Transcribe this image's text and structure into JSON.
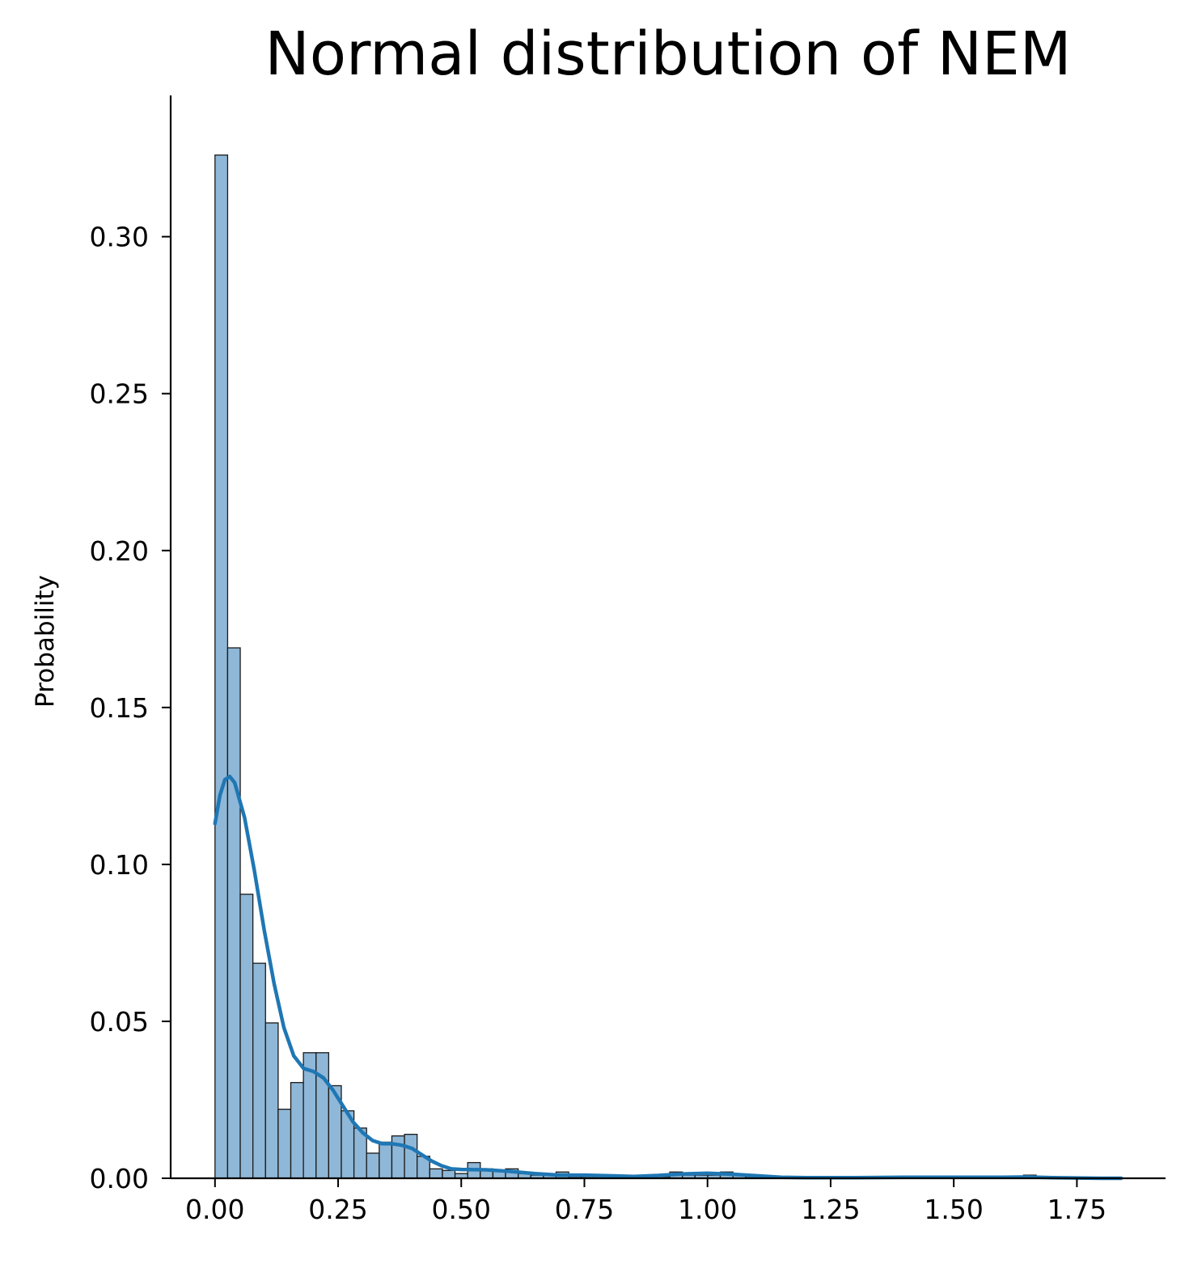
{
  "chart_data": {
    "type": "histogram",
    "title": "Normal distribution of NEM",
    "xlabel": "",
    "ylabel": "Probability",
    "xlim": [
      -0.09,
      1.93
    ],
    "ylim": [
      0,
      0.345
    ],
    "x_ticks": [
      "0.00",
      "0.25",
      "0.50",
      "0.75",
      "1.00",
      "1.25",
      "1.50",
      "1.75"
    ],
    "y_ticks": [
      "0.00",
      "0.05",
      "0.10",
      "0.15",
      "0.20",
      "0.25",
      "0.30"
    ],
    "grid": false,
    "colors": {
      "bar_fill": "#8fb7d7",
      "bar_edge": "#1a1a1a",
      "kde_line": "#1f77b4",
      "axis": "#000000"
    },
    "bins": {
      "start": 0.0,
      "width": 0.02565,
      "probabilities": [
        0.326,
        0.169,
        0.0905,
        0.0685,
        0.0495,
        0.022,
        0.0305,
        0.04,
        0.04,
        0.0295,
        0.0215,
        0.016,
        0.008,
        0.0115,
        0.0135,
        0.014,
        0.007,
        0.003,
        0.0025,
        0.0015,
        0.005,
        0.003,
        0.0025,
        0.003,
        0.0015,
        0.001,
        0.001,
        0.002,
        0.0005,
        0.0005,
        0.0005,
        0.0005,
        0.0005,
        0.0005,
        0.0005,
        0.0005,
        0.002,
        0.001,
        0.001,
        0.001,
        0.002,
        0.001,
        0.0005,
        0.0,
        0.0,
        0.0,
        0.0,
        0.0,
        0.0,
        0.0,
        0.0,
        0.0,
        0.0,
        0.0,
        0.0005,
        0.0005,
        0.0005,
        0.0005,
        0.0005,
        0.0,
        0.0,
        0.0,
        0.0,
        0.0,
        0.001,
        0.0,
        0.0,
        0.0,
        0.0,
        0.0,
        0.0,
        0.0,
        0.0
      ]
    },
    "kde": {
      "x": [
        0.0,
        0.01,
        0.02,
        0.03,
        0.04,
        0.06,
        0.08,
        0.1,
        0.12,
        0.14,
        0.16,
        0.18,
        0.2,
        0.22,
        0.24,
        0.26,
        0.28,
        0.3,
        0.32,
        0.34,
        0.36,
        0.38,
        0.4,
        0.42,
        0.44,
        0.46,
        0.48,
        0.5,
        0.55,
        0.6,
        0.65,
        0.7,
        0.75,
        0.8,
        0.85,
        0.9,
        0.95,
        1.0,
        1.05,
        1.1,
        1.15,
        1.2,
        1.3,
        1.4,
        1.5,
        1.6,
        1.65,
        1.7,
        1.75,
        1.8,
        1.84
      ],
      "y": [
        0.113,
        0.122,
        0.127,
        0.128,
        0.126,
        0.115,
        0.098,
        0.079,
        0.062,
        0.048,
        0.039,
        0.035,
        0.034,
        0.032,
        0.028,
        0.023,
        0.018,
        0.0145,
        0.012,
        0.011,
        0.011,
        0.0105,
        0.0095,
        0.0075,
        0.0055,
        0.004,
        0.003,
        0.0028,
        0.0027,
        0.0022,
        0.0015,
        0.001,
        0.001,
        0.0008,
        0.0006,
        0.0009,
        0.0014,
        0.0016,
        0.0013,
        0.0008,
        0.0003,
        0.0002,
        0.0002,
        0.0003,
        0.0003,
        0.0003,
        0.0004,
        0.0002,
        0.0001,
        0.0,
        0.0
      ]
    }
  }
}
